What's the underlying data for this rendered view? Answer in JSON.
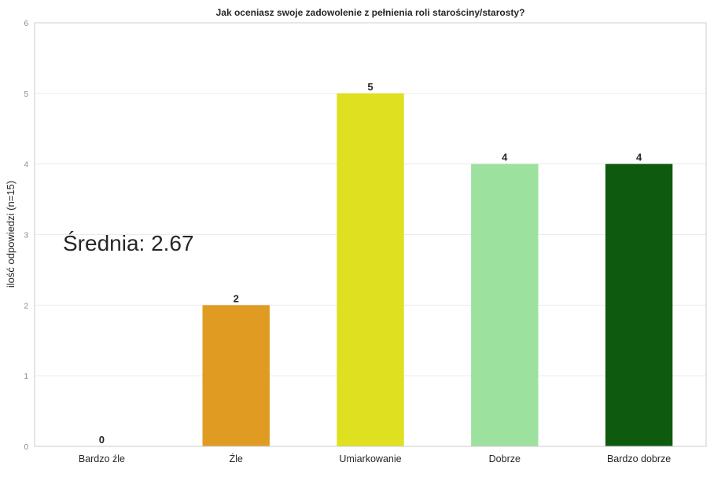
{
  "chart_data": {
    "type": "bar",
    "title": "Jak oceniasz swoje zadowolenie z pełnienia roli starościny/starosty?",
    "xlabel": "",
    "ylabel": "ilość odpowiedzi (n=15)",
    "categories": [
      "Bardzo źle",
      "Źle",
      "Umiarkowanie",
      "Dobrze",
      "Bardzo dobrze"
    ],
    "values": [
      0,
      2,
      5,
      4,
      4
    ],
    "data_labels": [
      "0",
      "2",
      "5",
      "4",
      "4"
    ],
    "colors": [
      "#e07b1e",
      "#e09c22",
      "#dfe01f",
      "#9de19f",
      "#0e5a0e"
    ],
    "ylim": [
      0,
      6
    ],
    "yticks": [
      0,
      1,
      2,
      3,
      4,
      5,
      6
    ],
    "grid": true,
    "annotation": "Średnia: 2.67"
  }
}
